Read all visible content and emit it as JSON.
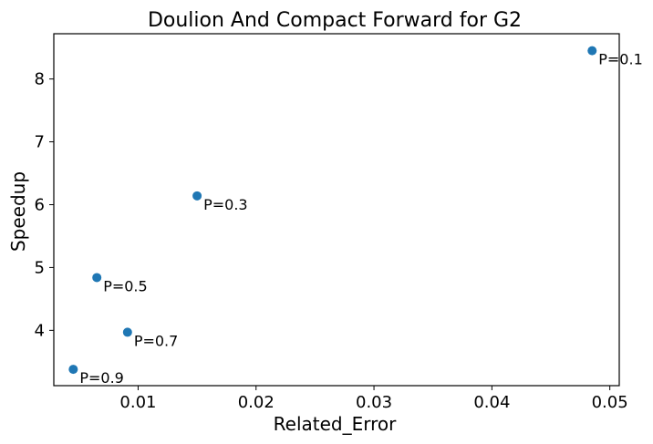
{
  "chart_data": {
    "type": "scatter",
    "title": "Doulion And Compact Forward for G2",
    "xlabel": "Related_Error",
    "ylabel": "Speedup",
    "xlim": [
      0.00285,
      0.0508
    ],
    "ylim": [
      3.12,
      8.72
    ],
    "xticks": [
      0.01,
      0.02,
      0.03,
      0.04,
      0.05
    ],
    "xtick_labels": [
      "0.01",
      "0.02",
      "0.03",
      "0.04",
      "0.05"
    ],
    "yticks": [
      4,
      5,
      6,
      7,
      8
    ],
    "ytick_labels": [
      "4",
      "5",
      "6",
      "7",
      "8"
    ],
    "grid": false,
    "marker_color": "#1f77b4",
    "points": [
      {
        "x": 0.0485,
        "y": 8.45,
        "label": "P=0.1"
      },
      {
        "x": 0.015,
        "y": 6.14,
        "label": "P=0.3"
      },
      {
        "x": 0.0065,
        "y": 4.84,
        "label": "P=0.5"
      },
      {
        "x": 0.0091,
        "y": 3.97,
        "label": "P=0.7"
      },
      {
        "x": 0.0045,
        "y": 3.38,
        "label": "P=0.9"
      }
    ]
  }
}
